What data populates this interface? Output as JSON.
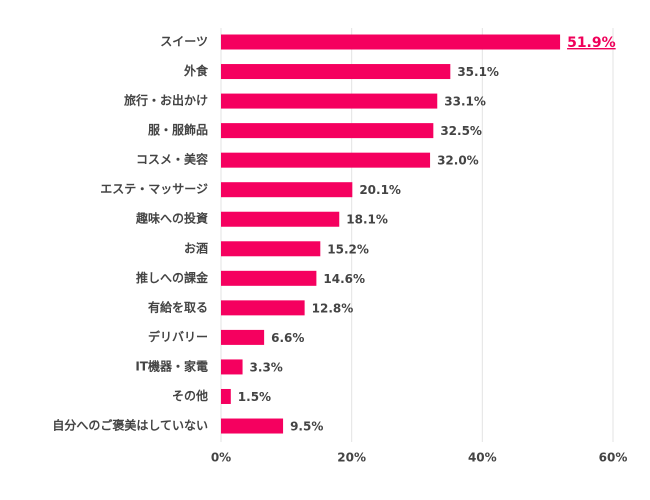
{
  "chart_data": {
    "type": "bar",
    "orientation": "horizontal",
    "categories": [
      "スイーツ",
      "外食",
      "旅行・お出かけ",
      "服・服飾品",
      "コスメ・美容",
      "エステ・マッサージ",
      "趣味への投資",
      "お酒",
      "推しへの課金",
      "有給を取る",
      "デリバリー",
      "IT機器・家電",
      "その他",
      "自分へのご褒美はしていない"
    ],
    "values": [
      51.9,
      35.1,
      33.1,
      32.5,
      32.0,
      20.1,
      18.1,
      15.2,
      14.6,
      12.8,
      6.6,
      3.3,
      1.5,
      9.5
    ],
    "value_labels": [
      "51.9%",
      "35.1%",
      "33.1%",
      "32.5%",
      "32.0%",
      "20.1%",
      "18.1%",
      "15.2%",
      "14.6%",
      "12.8%",
      "6.6%",
      "3.3%",
      "1.5%",
      "9.5%"
    ],
    "color": "#f5005f",
    "xlim": [
      0,
      60
    ],
    "xticks": [
      {
        "value": 0,
        "label": "0%"
      },
      {
        "value": 20,
        "label": "20%"
      },
      {
        "value": 40,
        "label": "40%"
      },
      {
        "value": 60,
        "label": "60%"
      }
    ],
    "grid": true
  }
}
